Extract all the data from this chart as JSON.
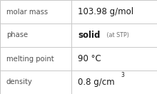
{
  "rows": [
    {
      "label": "molar mass",
      "value": "103.98 g/mol",
      "type": "plain"
    },
    {
      "label": "phase",
      "value": "solid",
      "value_suffix": " (at STP)",
      "type": "phase"
    },
    {
      "label": "melting point",
      "value": "90 °C",
      "type": "plain"
    },
    {
      "label": "density",
      "value_main": "0.8 g/cm",
      "value_super": "3",
      "type": "super"
    }
  ],
  "col_split": 0.455,
  "bg_color": "#ffffff",
  "border_color": "#c8c8c8",
  "label_color": "#505050",
  "value_color": "#1a1a1a",
  "suffix_color": "#707070",
  "label_fontsize": 7.2,
  "value_fontsize": 8.5,
  "suffix_fontsize": 5.8,
  "super_fontsize": 5.5,
  "font_family": "DejaVu Sans"
}
